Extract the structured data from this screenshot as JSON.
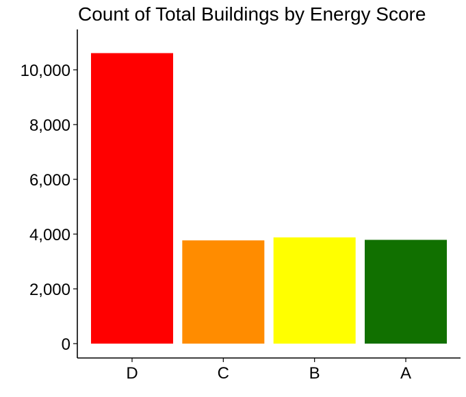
{
  "chart_data": {
    "type": "bar",
    "title": "Count of Total Buildings by Energy Score",
    "xlabel": "",
    "ylabel": "",
    "categories": [
      "D",
      "C",
      "B",
      "A"
    ],
    "values": [
      10610,
      3770,
      3880,
      3790
    ],
    "colors": [
      "#ff0000",
      "#ff8c00",
      "#ffff00",
      "#117000"
    ],
    "ylim": [
      0,
      11000
    ],
    "yticks": [
      0,
      2000,
      4000,
      6000,
      8000,
      10000
    ],
    "ytick_labels": [
      "0",
      "2,000",
      "4,000",
      "6,000",
      "8,000",
      "10,000"
    ],
    "grid": false,
    "legend": "none"
  }
}
